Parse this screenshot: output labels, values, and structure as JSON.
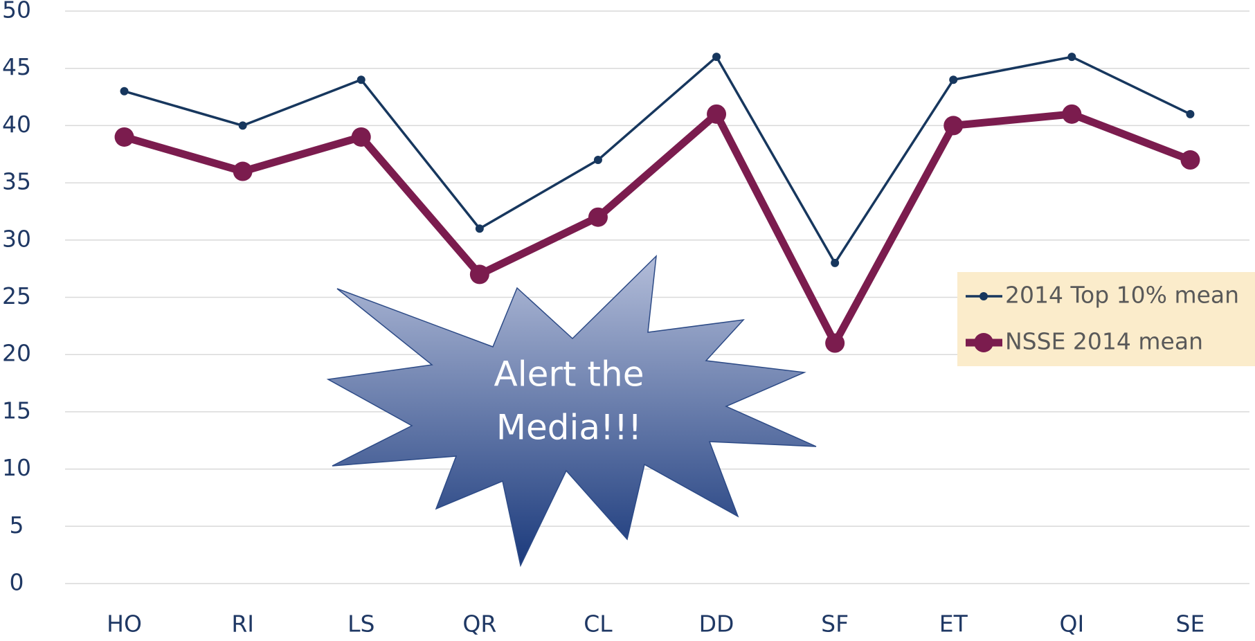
{
  "chart_data": {
    "type": "line",
    "categories": [
      "HO",
      "RI",
      "LS",
      "QR",
      "CL",
      "DD",
      "SF",
      "ET",
      "QI",
      "SE"
    ],
    "series": [
      {
        "name": "2014 Top 10% mean",
        "color": "#17375e",
        "values": [
          43,
          40,
          44,
          31,
          37,
          46,
          28,
          44,
          46,
          41
        ]
      },
      {
        "name": "NSSE 2014 mean",
        "color": "#7b1c4e",
        "values": [
          39,
          36,
          39,
          27,
          32,
          41,
          21,
          40,
          41,
          37
        ]
      }
    ],
    "ylim": [
      0,
      50
    ],
    "yticks": [
      0,
      5,
      10,
      15,
      20,
      25,
      30,
      35,
      40,
      45,
      50
    ],
    "grid": true,
    "legend": "right",
    "annotation": [
      "Alert the",
      "Media!!!"
    ]
  }
}
